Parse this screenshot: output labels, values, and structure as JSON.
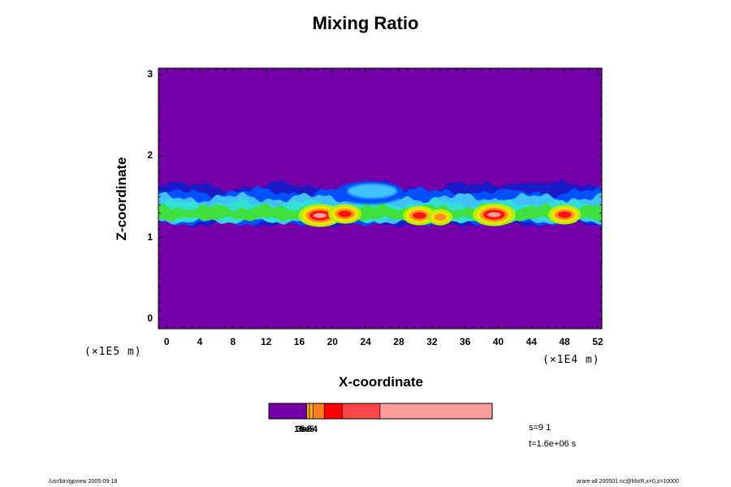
{
  "title": "Mixing Ratio",
  "chart_data": {
    "type": "heatmap",
    "title": "Mixing Ratio",
    "xlabel": "X-coordinate",
    "ylabel": "Z-coordinate",
    "x_unit": "(×1E4 m)",
    "y_unit": "(×1E5 m)",
    "xlim": [
      -1,
      52.5
    ],
    "ylim": [
      -0.12,
      3.08
    ],
    "x_ticks": [
      0,
      4,
      8,
      12,
      16,
      20,
      24,
      28,
      32,
      36,
      40,
      44,
      48,
      52
    ],
    "y_ticks": [
      0,
      1,
      2,
      3
    ],
    "x_tick_labels": [
      "0",
      "4",
      "8",
      "12",
      "16",
      "20",
      "24",
      "28",
      "32",
      "36",
      "40",
      "44",
      "48",
      "52"
    ],
    "y_tick_labels": [
      "0",
      "1",
      "2",
      "3"
    ],
    "background_level_color": "#7300a8",
    "layer_z_range": [
      1.15,
      1.55
    ],
    "hot_spots": [
      {
        "x": 18.5,
        "z": 1.27,
        "level": "max"
      },
      {
        "x": 21.5,
        "z": 1.29,
        "level": "high"
      },
      {
        "x": 30.5,
        "z": 1.27,
        "level": "high"
      },
      {
        "x": 33,
        "z": 1.25,
        "level": "mid"
      },
      {
        "x": 39.5,
        "z": 1.28,
        "level": "max"
      },
      {
        "x": 48,
        "z": 1.28,
        "level": "high"
      }
    ],
    "upper_plume": {
      "x": 24.5,
      "z": 1.55,
      "level": "low"
    },
    "colorbar": {
      "colors": [
        "#7300a8",
        "#f0c000",
        "#ffb000",
        "#ff7f1e",
        "#ff0000",
        "#ff4545",
        "#ff9c9c"
      ],
      "labels": [
        "1e-5",
        "3e-5",
        "5e-4"
      ]
    },
    "grid": false,
    "legend": "colorbar-bottom"
  },
  "annotations": {
    "step": "s=9 1",
    "time": "t=1.6e+06 s",
    "footer_left": "/usr/bin/gpview 2005-09-18",
    "footer_right": "arare-all 200501 nc@MixR,x=0,z=10000"
  },
  "colors": {
    "violet": "#7300a8",
    "navy": "#1a1ac8",
    "blue": "#0050ff",
    "lightblue": "#40c0ff",
    "cyan": "#30e0d0",
    "green": "#40e040",
    "yellowgreen": "#b0f000",
    "yellow": "#ffe000",
    "orange": "#ff9020",
    "red": "#ff1010",
    "pink": "#ff9c9c"
  }
}
